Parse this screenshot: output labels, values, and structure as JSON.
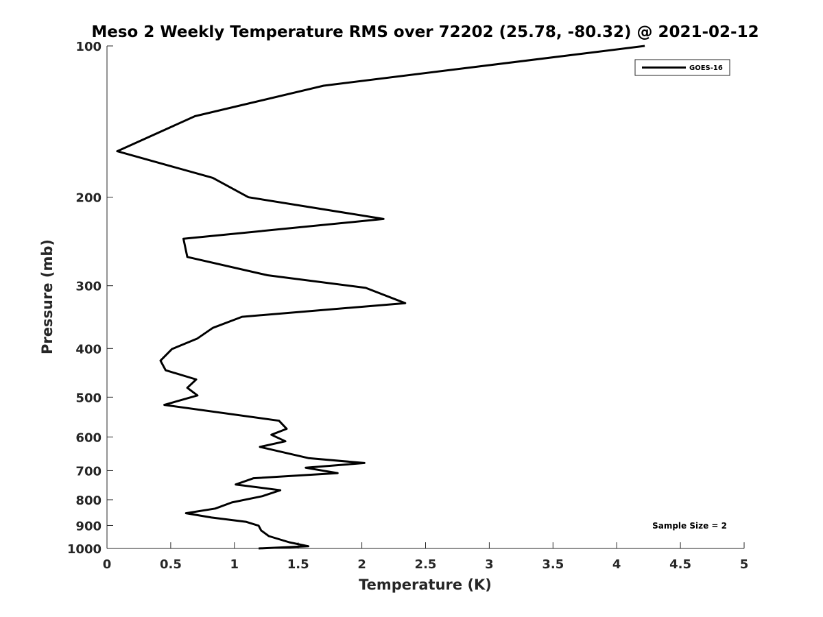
{
  "chart_data": {
    "type": "line",
    "title": "Meso 2 Weekly Temperature RMS over 72202 (25.78, -80.32) @ 2021-02-12",
    "xlabel": "Temperature (K)",
    "ylabel": "Pressure (mb)",
    "xlim": [
      0,
      5
    ],
    "ylim": [
      100,
      1000
    ],
    "y_scale": "log",
    "y_reversed": true,
    "grid": false,
    "x_ticks": [
      "0",
      "0.5",
      "1",
      "1.5",
      "2",
      "2.5",
      "3",
      "3.5",
      "4",
      "4.5",
      "5"
    ],
    "x_tick_values": [
      0,
      0.5,
      1,
      1.5,
      2,
      2.5,
      3,
      3.5,
      4,
      4.5,
      5
    ],
    "y_ticks": [
      "100",
      "200",
      "300",
      "400",
      "500",
      "600",
      "700",
      "800",
      "900",
      "1000"
    ],
    "y_tick_values": [
      100,
      200,
      300,
      400,
      500,
      600,
      700,
      800,
      900,
      1000
    ],
    "legend_position": "top-right",
    "annotation": "Sample Size = 2",
    "series": [
      {
        "name": "GOES-16",
        "color": "#000000",
        "points": [
          [
            4.22,
            100
          ],
          [
            1.7,
            120
          ],
          [
            0.69,
            138
          ],
          [
            0.08,
            162
          ],
          [
            0.83,
            183
          ],
          [
            1.11,
            200
          ],
          [
            2.17,
            221
          ],
          [
            0.6,
            242
          ],
          [
            0.63,
            263
          ],
          [
            1.26,
            286
          ],
          [
            2.03,
            303
          ],
          [
            2.34,
            325
          ],
          [
            1.06,
            346
          ],
          [
            0.83,
            364
          ],
          [
            0.71,
            382
          ],
          [
            0.51,
            401
          ],
          [
            0.42,
            423
          ],
          [
            0.46,
            442
          ],
          [
            0.7,
            461
          ],
          [
            0.63,
            479
          ],
          [
            0.71,
            496
          ],
          [
            0.45,
            518
          ],
          [
            1.35,
            557
          ],
          [
            1.41,
            578
          ],
          [
            1.29,
            594
          ],
          [
            1.4,
            612
          ],
          [
            1.2,
            628
          ],
          [
            1.58,
            661
          ],
          [
            2.02,
            676
          ],
          [
            1.56,
            691
          ],
          [
            1.81,
            708
          ],
          [
            1.15,
            725
          ],
          [
            1.01,
            746
          ],
          [
            1.36,
            766
          ],
          [
            1.22,
            787
          ],
          [
            0.98,
            810
          ],
          [
            0.85,
            833
          ],
          [
            0.62,
            851
          ],
          [
            0.82,
            868
          ],
          [
            1.09,
            885
          ],
          [
            1.19,
            901
          ],
          [
            1.21,
            921
          ],
          [
            1.27,
            945
          ],
          [
            1.43,
            972
          ],
          [
            1.58,
            990
          ],
          [
            1.19,
            1000
          ]
        ]
      }
    ]
  }
}
